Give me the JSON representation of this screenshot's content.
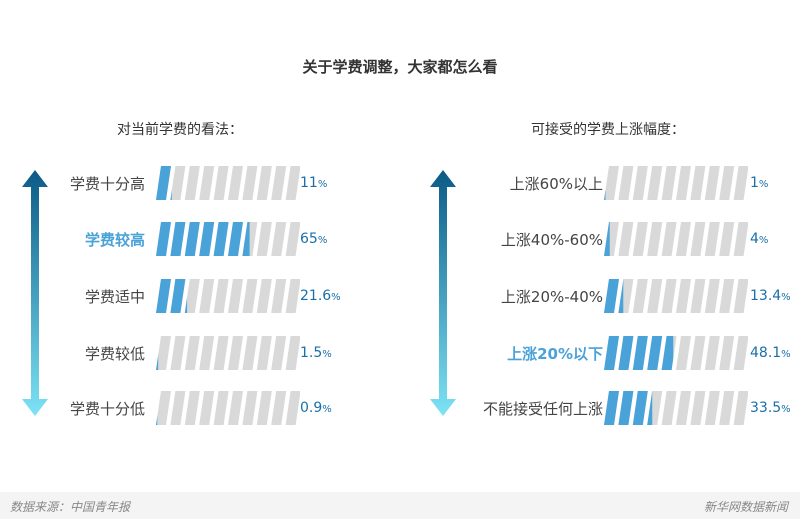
{
  "title": "关于学费调整，大家都怎么看",
  "chart_data": [
    {
      "type": "bar",
      "title": "对当前学费的看法：",
      "unit": "%",
      "highlight": 1,
      "categories": [
        "学费十分高",
        "学费较高",
        "学费适中",
        "学费较低",
        "学费十分低"
      ],
      "values": [
        11,
        65,
        21.6,
        1.5,
        0.9
      ],
      "labels": [
        "11",
        "65",
        "21.6",
        "1.5",
        "0.9"
      ]
    },
    {
      "type": "bar",
      "title": "可接受的学费上涨幅度：",
      "unit": "%",
      "highlight": 3,
      "categories": [
        "上涨60%以上",
        "上涨40%-60%",
        "上涨20%-40%",
        "上涨20%以下",
        "不能接受任何上涨"
      ],
      "values": [
        1,
        4,
        13.4,
        48.1,
        33.5
      ],
      "labels": [
        "1",
        "4",
        "13.4",
        "48.1",
        "33.5"
      ]
    }
  ],
  "colors": {
    "fill": "#4aa3d8",
    "empty": "#d9d9d9",
    "arrow_top": "#0b5a86",
    "arrow_bottom": "#7de3f5"
  },
  "footer": {
    "source": "数据来源：中国青年报",
    "brand": "新华网数据新闻"
  }
}
